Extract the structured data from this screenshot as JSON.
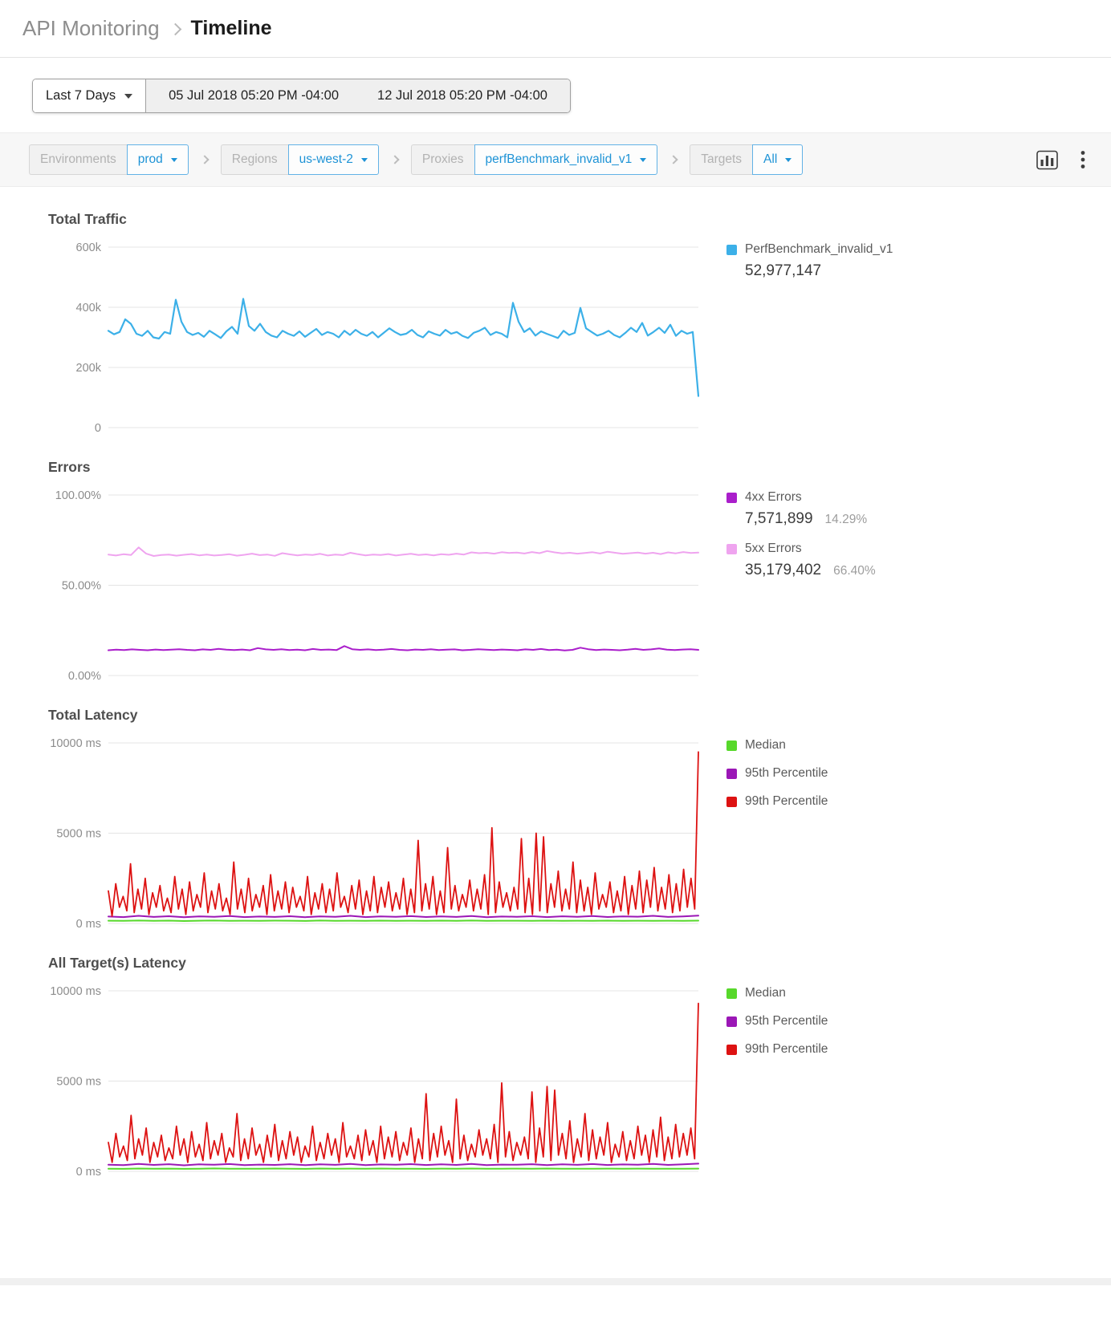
{
  "header": {
    "breadcrumb_root": "API Monitoring",
    "breadcrumb_current": "Timeline"
  },
  "date_controls": {
    "preset": "Last 7 Days",
    "start": "05 Jul 2018 05:20 PM -04:00",
    "end": "12 Jul 2018 05:20 PM -04:00"
  },
  "filters": {
    "groups": [
      {
        "label": "Environments",
        "value": "prod"
      },
      {
        "label": "Regions",
        "value": "us-west-2"
      },
      {
        "label": "Proxies",
        "value": "perfBenchmark_invalid_v1"
      },
      {
        "label": "Targets",
        "value": "All"
      }
    ]
  },
  "colors": {
    "accent_blue": "#1e93d6",
    "traffic_blue": "#3cb0e8",
    "errors_4xx_purple": "#aa1ecb",
    "errors_5xx_pink": "#efa4ef",
    "median_green": "#57d82b",
    "p95_purple": "#9b17b6",
    "p99_red": "#dd1212"
  },
  "charts": [
    {
      "id": "total-traffic",
      "title": "Total Traffic",
      "y_min": 0,
      "y_max": 600000,
      "ticks": [
        {
          "value": 600000,
          "label": "600k"
        },
        {
          "value": 400000,
          "label": "400k"
        },
        {
          "value": 200000,
          "label": "200k"
        },
        {
          "value": 0,
          "label": "0"
        }
      ],
      "series": [
        {
          "key": "traffic",
          "name": "PerfBenchmark_invalid_v1",
          "color": "#3cb0e8",
          "width": 2.2,
          "values": [
            322000,
            310000,
            318000,
            360000,
            345000,
            312000,
            305000,
            322000,
            300000,
            296000,
            318000,
            312000,
            425000,
            352000,
            318000,
            308000,
            315000,
            302000,
            322000,
            310000,
            298000,
            320000,
            335000,
            312000,
            428000,
            338000,
            322000,
            345000,
            318000,
            306000,
            300000,
            322000,
            312000,
            305000,
            320000,
            302000,
            315000,
            328000,
            308000,
            318000,
            312000,
            300000,
            322000,
            308000,
            325000,
            312000,
            305000,
            318000,
            300000,
            315000,
            330000,
            318000,
            308000,
            312000,
            325000,
            308000,
            300000,
            320000,
            312000,
            306000,
            325000,
            312000,
            318000,
            305000,
            298000,
            315000,
            322000,
            332000,
            308000,
            318000,
            312000,
            300000,
            415000,
            352000,
            318000,
            330000,
            306000,
            320000,
            312000,
            305000,
            298000,
            322000,
            308000,
            315000,
            398000,
            330000,
            318000,
            306000,
            312000,
            322000,
            308000,
            300000,
            315000,
            332000,
            318000,
            348000,
            306000,
            318000,
            332000,
            315000,
            342000,
            305000,
            322000,
            312000,
            318000,
            105000
          ]
        }
      ],
      "legend": [
        {
          "label": "PerfBenchmark_invalid_v1",
          "color": "#3cb0e8",
          "value": "52,977,147"
        }
      ]
    },
    {
      "id": "errors",
      "title": "Errors",
      "y_min": 0,
      "y_max": 100,
      "ticks": [
        {
          "value": 100,
          "label": "100.00%"
        },
        {
          "value": 50,
          "label": "50.00%"
        },
        {
          "value": 0,
          "label": "0.00%"
        }
      ],
      "series": [
        {
          "key": "errors-5xx",
          "name": "5xx Errors",
          "color": "#efa4ef",
          "width": 2,
          "values": [
            67.0,
            66.5,
            67.2,
            66.8,
            71.0,
            67.5,
            66.2,
            66.8,
            67.0,
            66.4,
            66.9,
            67.3,
            66.6,
            67.0,
            66.5,
            66.8,
            67.2,
            66.4,
            66.9,
            67.5,
            66.7,
            67.0,
            66.3,
            67.8,
            67.1,
            66.6,
            67.0,
            66.8,
            67.4,
            66.5,
            67.0,
            66.7,
            68.0,
            67.2,
            66.6,
            67.0,
            66.8,
            67.3,
            66.5,
            67.0,
            67.4,
            66.8,
            67.1,
            66.6,
            67.2,
            66.9,
            67.5,
            67.0,
            68.2,
            67.8,
            68.0,
            67.5,
            68.3,
            67.9,
            68.1,
            67.6,
            68.4,
            67.8,
            69.0,
            68.2,
            67.7,
            68.0,
            67.5,
            67.9,
            68.3,
            67.6,
            68.6,
            68.0,
            67.4,
            67.8,
            68.1,
            67.5,
            68.0,
            67.3,
            68.2,
            67.7,
            68.4,
            67.9,
            68.1
          ]
        },
        {
          "key": "errors-4xx",
          "name": "4xx Errors",
          "color": "#aa1ecb",
          "width": 2,
          "values": [
            14.0,
            14.3,
            14.1,
            14.5,
            14.2,
            14.0,
            14.4,
            14.1,
            14.3,
            14.6,
            14.2,
            14.0,
            14.5,
            14.2,
            14.8,
            14.3,
            14.1,
            14.4,
            14.0,
            15.2,
            14.5,
            14.2,
            14.6,
            14.1,
            14.3,
            14.0,
            14.7,
            14.2,
            14.4,
            14.1,
            16.3,
            14.6,
            14.2,
            14.5,
            14.1,
            14.3,
            14.7,
            14.2,
            14.0,
            14.4,
            14.2,
            14.6,
            14.1,
            14.3,
            14.5,
            14.0,
            14.2,
            14.6,
            14.3,
            14.1,
            14.4,
            14.2,
            14.0,
            14.5,
            14.2,
            14.7,
            14.1,
            14.3,
            13.9,
            14.2,
            15.4,
            14.6,
            14.1,
            14.4,
            14.2,
            14.0,
            14.3,
            14.8,
            14.2,
            14.5,
            15.0,
            14.3,
            14.1,
            14.4,
            14.6,
            14.2
          ]
        }
      ],
      "legend": [
        {
          "label": "4xx Errors",
          "color": "#aa1ecb",
          "value": "7,571,899",
          "pct": "14.29%"
        },
        {
          "label": "5xx Errors",
          "color": "#efa4ef",
          "value": "35,179,402",
          "pct": "66.40%"
        }
      ]
    },
    {
      "id": "total-latency",
      "title": "Total Latency",
      "y_min": 0,
      "y_max": 10000,
      "ticks": [
        {
          "value": 10000,
          "label": "10000 ms"
        },
        {
          "value": 5000,
          "label": "5000 ms"
        },
        {
          "value": 0,
          "label": "0 ms"
        }
      ],
      "series": [
        {
          "key": "median",
          "name": "Median",
          "color": "#57d82b",
          "width": 2,
          "values": [
            150,
            140,
            160,
            145,
            155,
            135,
            150,
            160,
            140,
            150,
            145,
            155,
            150,
            138,
            158,
            148,
            152,
            142,
            156,
            146,
            150,
            140,
            154,
            148,
            158,
            144,
            150,
            152,
            146,
            156,
            142,
            150,
            148,
            154,
            144,
            152,
            146,
            150,
            148,
            155
          ]
        },
        {
          "key": "p95",
          "name": "95th Percentile",
          "color": "#9b17b6",
          "width": 2,
          "values": [
            380,
            350,
            420,
            360,
            400,
            340,
            390,
            370,
            410,
            350,
            380,
            360,
            400,
            345,
            390,
            365,
            420,
            350,
            385,
            370,
            405,
            355,
            390,
            360,
            415,
            345,
            380,
            370,
            400,
            350,
            395,
            365,
            410,
            355,
            385,
            375,
            420,
            360,
            390,
            430
          ]
        },
        {
          "key": "p99",
          "name": "99th Percentile",
          "color": "#dd1212",
          "width": 1.8,
          "values": [
            1800,
            400,
            2200,
            900,
            1500,
            700,
            3300,
            600,
            1900,
            800,
            2500,
            500,
            1700,
            900,
            2100,
            700,
            1400,
            600,
            2600,
            800,
            1900,
            500,
            2300,
            700,
            1600,
            900,
            2800,
            600,
            1800,
            800,
            2200,
            700,
            1400,
            500,
            3400,
            800,
            1900,
            600,
            2500,
            700,
            1600,
            900,
            2100,
            500,
            2700,
            700,
            1800,
            800,
            2300,
            600,
            2000,
            900,
            1500,
            700,
            2600,
            500,
            1700,
            800,
            2200,
            600,
            1900,
            700,
            2800,
            900,
            1500,
            600,
            2100,
            800,
            2400,
            500,
            1800,
            700,
            2600,
            600,
            2000,
            900,
            2300,
            700,
            1700,
            800,
            2500,
            500,
            1900,
            600,
            4600,
            700,
            2200,
            800,
            2600,
            500,
            1800,
            600,
            4200,
            800,
            2100,
            700,
            1600,
            900,
            2400,
            700,
            1900,
            800,
            2700,
            500,
            5300,
            600,
            2300,
            900,
            1700,
            700,
            2000,
            800,
            4700,
            600,
            2500,
            500,
            5000,
            700,
            4800,
            600,
            2200,
            900,
            2900,
            700,
            1900,
            800,
            3400,
            600,
            2400,
            700,
            2000,
            500,
            2800,
            800,
            1600,
            900,
            2300,
            600,
            1800,
            700,
            2600,
            500,
            2100,
            800,
            2900,
            600,
            2400,
            900,
            3100,
            700,
            2000,
            800,
            2700,
            600,
            2200,
            700,
            3000,
            900,
            2500,
            800,
            9500
          ]
        }
      ],
      "legend": [
        {
          "label": "Median",
          "color": "#57d82b"
        },
        {
          "label": "95th Percentile",
          "color": "#9b17b6"
        },
        {
          "label": "99th Percentile",
          "color": "#dd1212"
        }
      ]
    },
    {
      "id": "all-targets-latency",
      "title": "All Target(s) Latency",
      "y_min": 0,
      "y_max": 10000,
      "ticks": [
        {
          "value": 10000,
          "label": "10000 ms"
        },
        {
          "value": 5000,
          "label": "5000 ms"
        },
        {
          "value": 0,
          "label": "0 ms"
        }
      ],
      "series": [
        {
          "key": "median",
          "name": "Median",
          "color": "#57d82b",
          "width": 2,
          "values": [
            148,
            138,
            156,
            144,
            152,
            136,
            148,
            158,
            140,
            148,
            144,
            154,
            148,
            136,
            156,
            146,
            150,
            140,
            154,
            144,
            148,
            138,
            152,
            146,
            156,
            142,
            148,
            150,
            144,
            154,
            140,
            148,
            146,
            152,
            142,
            150,
            144,
            148,
            146,
            153
          ]
        },
        {
          "key": "p95",
          "name": "95th Percentile",
          "color": "#9b17b6",
          "width": 2,
          "values": [
            370,
            345,
            410,
            355,
            395,
            335,
            385,
            365,
            405,
            345,
            375,
            355,
            395,
            340,
            385,
            360,
            415,
            345,
            380,
            365,
            400,
            350,
            385,
            355,
            410,
            340,
            375,
            365,
            395,
            345,
            390,
            360,
            405,
            350,
            380,
            370,
            415,
            355,
            385,
            425
          ]
        },
        {
          "key": "p99",
          "name": "99th Percentile",
          "color": "#dd1212",
          "width": 1.8,
          "values": [
            1600,
            500,
            2100,
            800,
            1400,
            600,
            3100,
            700,
            1800,
            900,
            2400,
            500,
            1600,
            800,
            2000,
            600,
            1300,
            700,
            2500,
            900,
            1800,
            500,
            2200,
            800,
            1500,
            600,
            2700,
            700,
            1700,
            900,
            2100,
            500,
            1300,
            800,
            3200,
            600,
            1800,
            700,
            2400,
            900,
            1500,
            500,
            2000,
            800,
            2600,
            600,
            1700,
            700,
            2200,
            900,
            1900,
            500,
            1400,
            800,
            2500,
            600,
            1600,
            700,
            2100,
            900,
            1800,
            500,
            2700,
            800,
            1400,
            700,
            2000,
            600,
            2300,
            900,
            1700,
            500,
            2500,
            700,
            1900,
            800,
            2200,
            600,
            1600,
            900,
            2400,
            500,
            1800,
            700,
            4300,
            600,
            2100,
            800,
            2500,
            900,
            1700,
            500,
            4000,
            700,
            2000,
            600,
            1500,
            800,
            2300,
            900,
            1800,
            700,
            2600,
            500,
            4900,
            800,
            2200,
            600,
            1600,
            900,
            1900,
            700,
            4400,
            500,
            2400,
            800,
            4700,
            600,
            4500,
            900,
            2100,
            700,
            2800,
            500,
            1800,
            800,
            3200,
            600,
            2300,
            700,
            1900,
            900,
            2700,
            500,
            1500,
            800,
            2200,
            600,
            1700,
            700,
            2500,
            900,
            2000,
            500,
            2300,
            800,
            3000,
            600,
            1900,
            700,
            2600,
            800,
            2100,
            900,
            2400,
            700,
            9300
          ]
        }
      ],
      "legend": [
        {
          "label": "Median",
          "color": "#57d82b"
        },
        {
          "label": "95th Percentile",
          "color": "#9b17b6"
        },
        {
          "label": "99th Percentile",
          "color": "#dd1212"
        }
      ]
    }
  ]
}
